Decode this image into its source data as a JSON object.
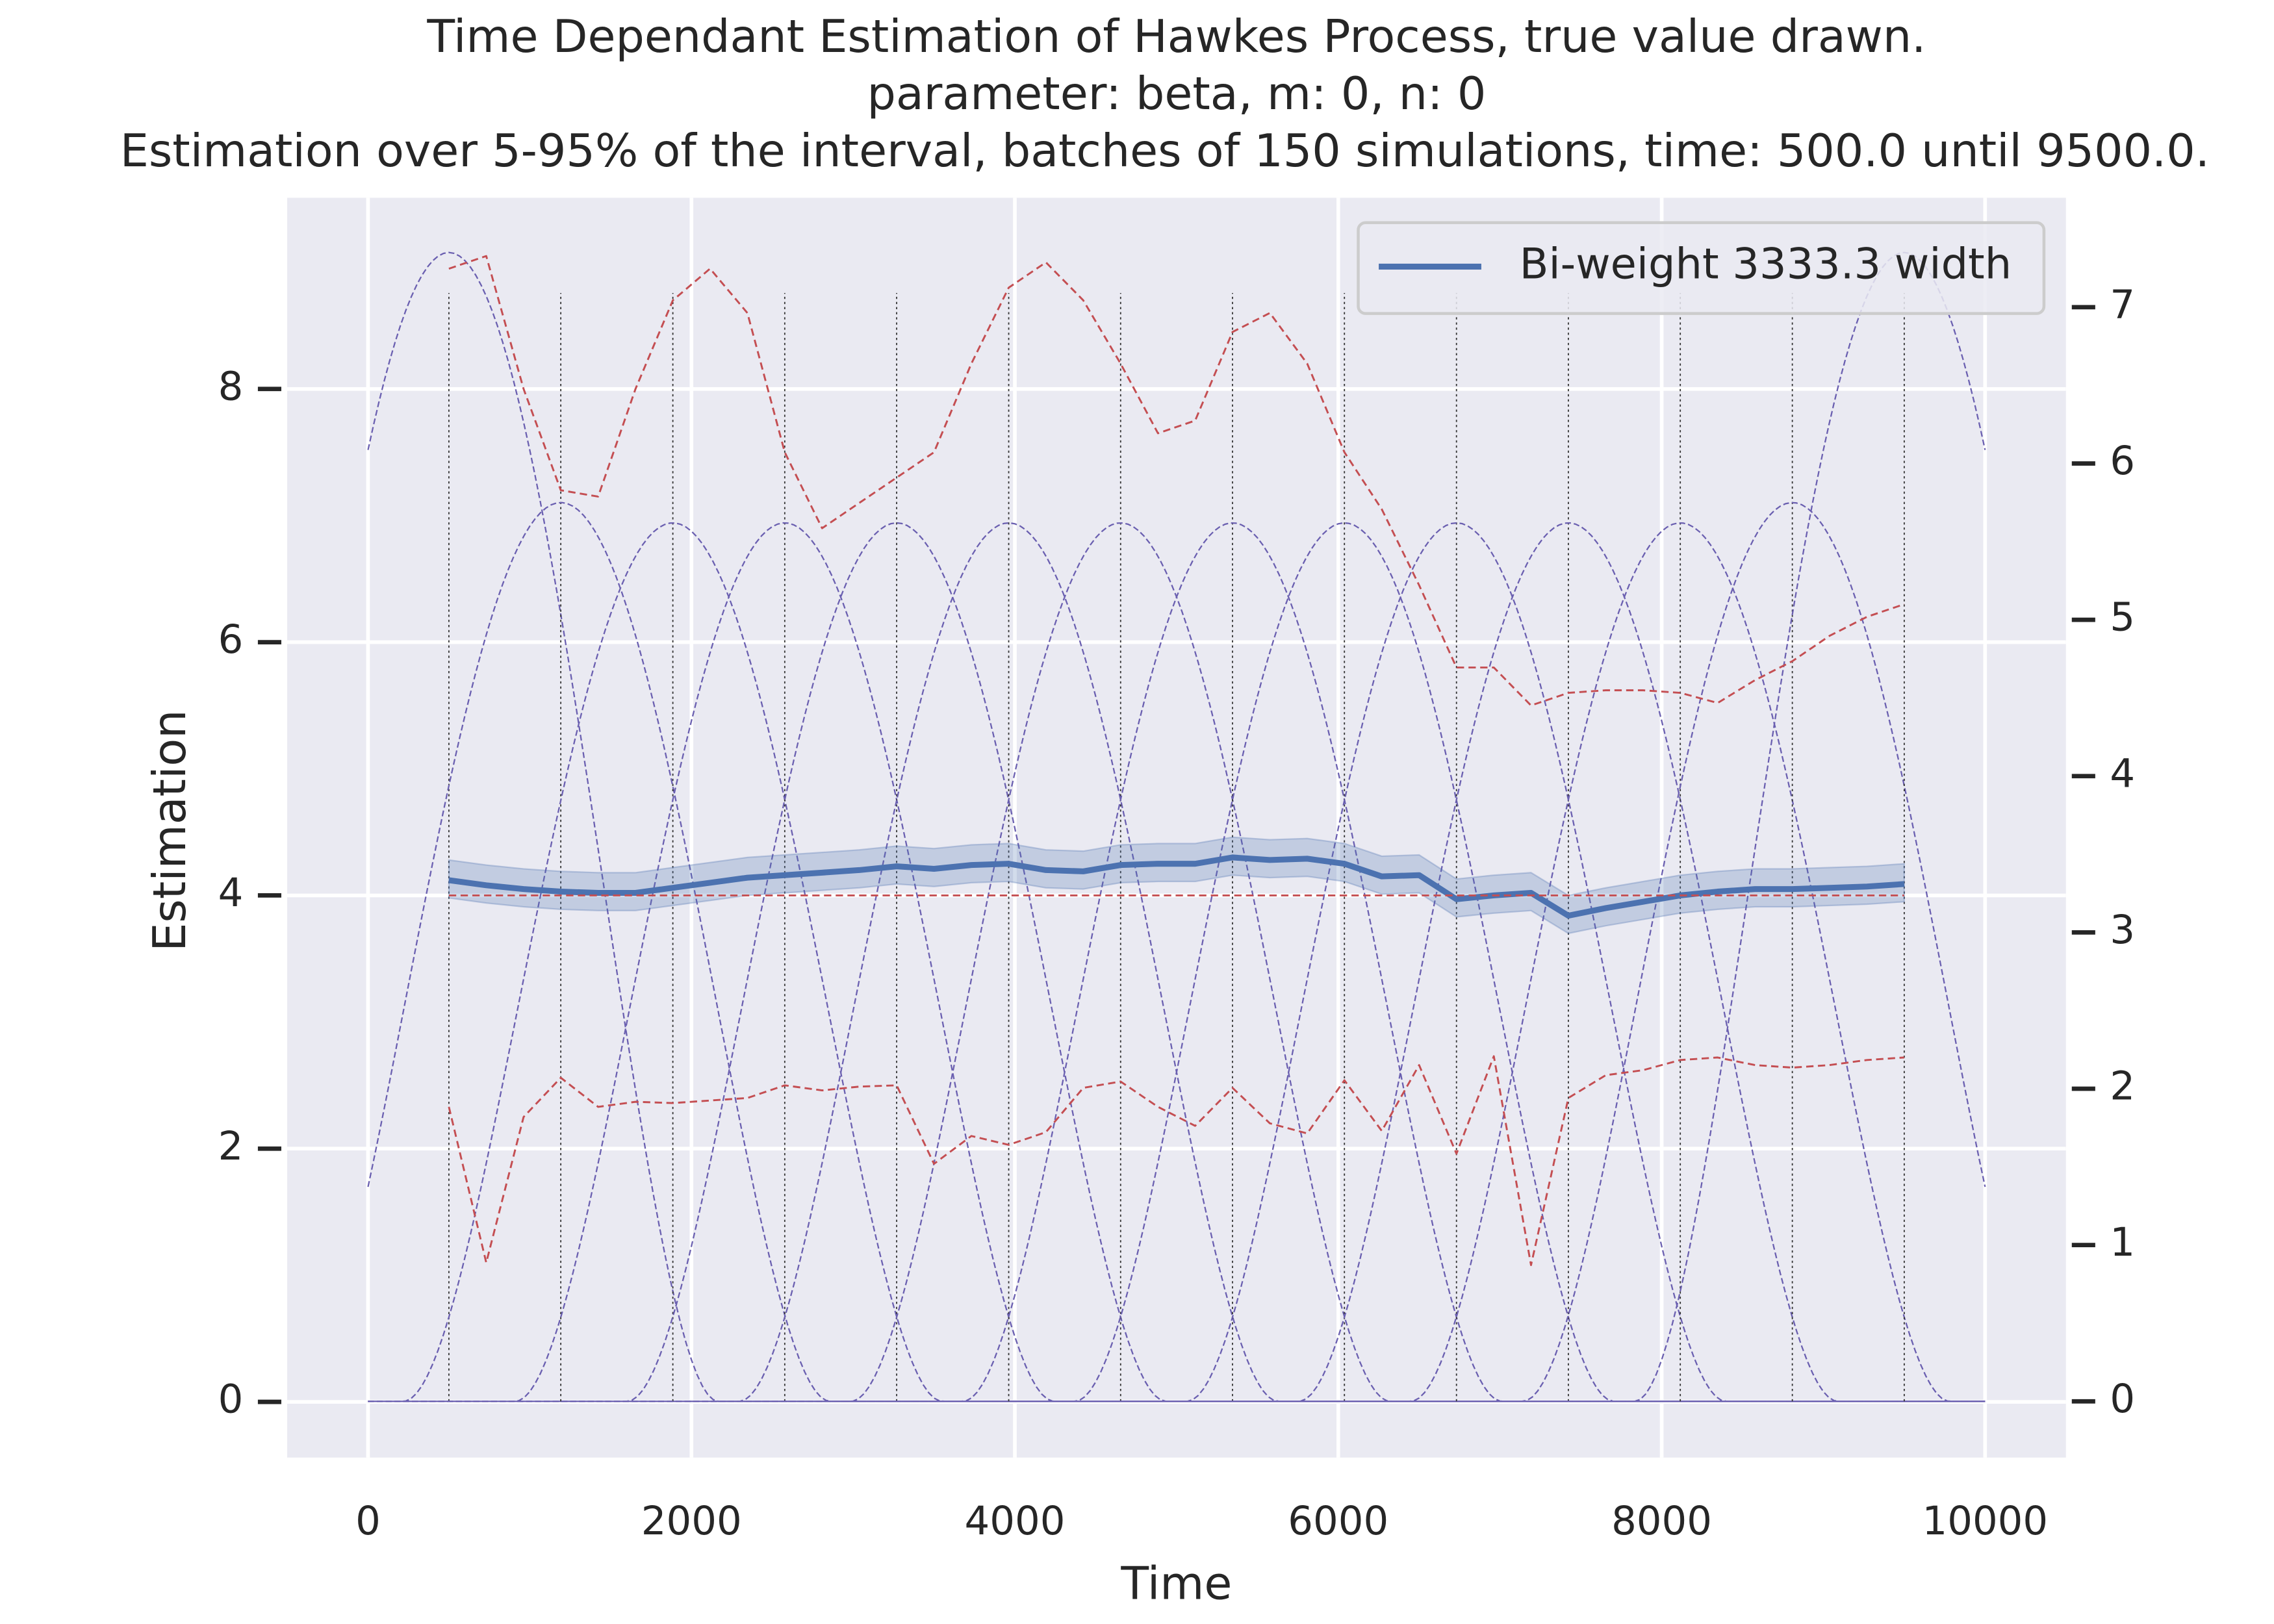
{
  "chart_data": {
    "type": "line",
    "title": "Time Dependant Estimation of Hawkes Process, true value drawn.",
    "subtitle": "parameter: beta, m: 0, n: 0",
    "subtitle2": "Estimation over 5-95% of the interval, batches of 150 simulations, time: 500.0 until 9500.0.",
    "xlabel": "Time",
    "ylabel": "Estimation",
    "xlim": [
      -500,
      10500
    ],
    "ylim": [
      -0.44,
      9.51
    ],
    "y2lim": [
      -0.36,
      7.7
    ],
    "xticks": [
      0,
      2000,
      4000,
      6000,
      8000,
      10000
    ],
    "yticks": [
      0,
      2,
      4,
      6,
      8
    ],
    "y2ticks": [
      0,
      1,
      2,
      3,
      4,
      5,
      6,
      7
    ],
    "grid": true,
    "legend": "upper right",
    "x": [
      500,
      731,
      962,
      1192,
      1423,
      1654,
      1885,
      2115,
      2346,
      2577,
      2808,
      3038,
      3269,
      3500,
      3731,
      3962,
      4192,
      4423,
      4654,
      4885,
      5115,
      5346,
      5577,
      5808,
      6038,
      6269,
      6500,
      6731,
      6962,
      7192,
      7423,
      7654,
      7885,
      8115,
      8346,
      8577,
      8808,
      9038,
      9269,
      9500
    ],
    "series": [
      {
        "name": "Bi-weight 3333.3 width",
        "color": "#4c72b0",
        "values": [
          4.12,
          4.08,
          4.05,
          4.03,
          4.02,
          4.02,
          4.06,
          4.1,
          4.14,
          4.16,
          4.18,
          4.2,
          4.23,
          4.21,
          4.24,
          4.25,
          4.2,
          4.19,
          4.24,
          4.25,
          4.25,
          4.3,
          4.28,
          4.29,
          4.25,
          4.15,
          4.16,
          3.97,
          4.0,
          4.02,
          3.84,
          3.9,
          3.95,
          4.0,
          4.03,
          4.05,
          4.05,
          4.06,
          4.07,
          4.09
        ],
        "ci_lower": [
          3.98,
          3.94,
          3.91,
          3.89,
          3.88,
          3.88,
          3.92,
          3.96,
          4.0,
          4.02,
          4.04,
          4.06,
          4.09,
          4.07,
          4.1,
          4.11,
          4.06,
          4.05,
          4.1,
          4.11,
          4.11,
          4.16,
          4.14,
          4.15,
          4.11,
          4.01,
          4.02,
          3.83,
          3.86,
          3.88,
          3.7,
          3.76,
          3.81,
          3.86,
          3.89,
          3.91,
          3.91,
          3.92,
          3.93,
          3.95
        ],
        "ci_upper": [
          4.28,
          4.24,
          4.21,
          4.19,
          4.18,
          4.18,
          4.22,
          4.26,
          4.3,
          4.32,
          4.34,
          4.36,
          4.39,
          4.37,
          4.4,
          4.41,
          4.36,
          4.35,
          4.4,
          4.41,
          4.41,
          4.46,
          4.44,
          4.45,
          4.41,
          4.31,
          4.32,
          4.13,
          4.16,
          4.18,
          4.0,
          4.06,
          4.11,
          4.16,
          4.19,
          4.21,
          4.21,
          4.22,
          4.23,
          4.25
        ]
      },
      {
        "color": "#c44e52",
        "dashed": true,
        "values": [
          8.95,
          9.05,
          8.0,
          7.2,
          7.15,
          8.0,
          8.7,
          8.95,
          8.6,
          7.5,
          6.9,
          7.1,
          7.3,
          7.5,
          8.2,
          8.8,
          9.0,
          8.7,
          8.2,
          7.65,
          7.75,
          8.45,
          8.6,
          8.2,
          7.5,
          7.05,
          6.45,
          5.8,
          5.8,
          5.5,
          5.6,
          5.62,
          5.62,
          5.6,
          5.52,
          5.7,
          5.85,
          6.05,
          6.2,
          6.3
        ]
      },
      {
        "color": "#c44e52",
        "dashed": true,
        "values": [
          2.33,
          1.1,
          2.25,
          2.56,
          2.33,
          2.37,
          2.36,
          2.38,
          2.4,
          2.5,
          2.46,
          2.49,
          2.5,
          1.88,
          2.1,
          2.03,
          2.13,
          2.48,
          2.53,
          2.33,
          2.18,
          2.48,
          2.2,
          2.12,
          2.54,
          2.14,
          2.66,
          1.96,
          2.73,
          1.08,
          2.4,
          2.58,
          2.62,
          2.7,
          2.72,
          2.66,
          2.64,
          2.66,
          2.7,
          2.72
        ]
      },
      {
        "color": "#c44e52",
        "dashed": true,
        "x": [
          500,
          9500
        ],
        "values": [
          4,
          4
        ]
      }
    ],
    "kernels": {
      "color": "#6a5fb0",
      "axis": "y2",
      "half_width": 1666.65,
      "domain": [
        0,
        10000
      ],
      "centers": [
        500,
        1192,
        1885,
        2577,
        3269,
        3962,
        4654,
        5346,
        6038,
        6731,
        7423,
        8115,
        8808,
        9500
      ],
      "peaks": [
        7.35,
        5.75,
        5.62,
        5.62,
        5.62,
        5.62,
        5.62,
        5.62,
        5.62,
        5.62,
        5.62,
        5.62,
        5.75,
        7.35
      ]
    }
  }
}
